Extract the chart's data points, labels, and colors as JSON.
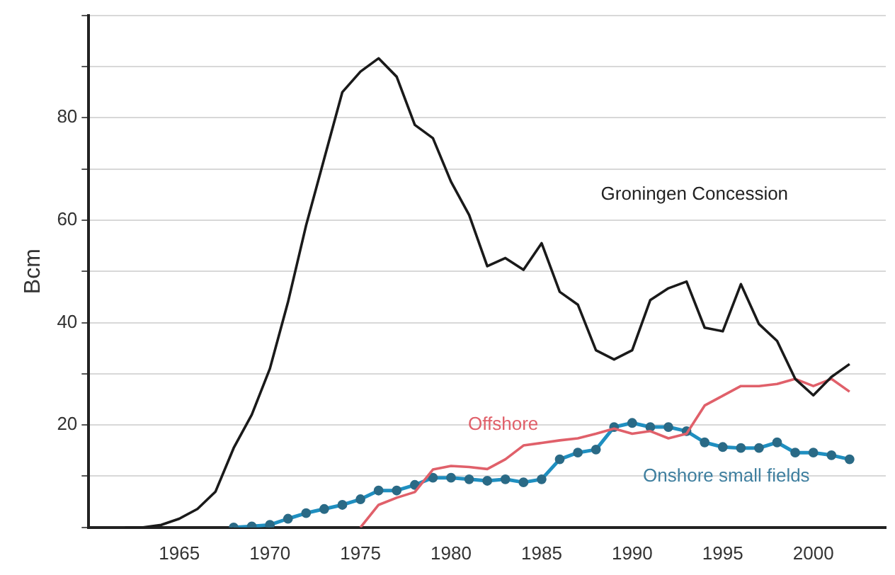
{
  "chart_data": {
    "type": "line",
    "ylabel": "Bcm",
    "xlim": [
      1960,
      2004
    ],
    "ylim": [
      0,
      100
    ],
    "xticks": [
      1965,
      1970,
      1975,
      1980,
      1985,
      1990,
      1995,
      2000
    ],
    "yticks": [
      {
        "value": 0,
        "label": null
      },
      {
        "value": 10,
        "label": null
      },
      20,
      {
        "value": 30,
        "label": null
      },
      40,
      {
        "value": 50,
        "label": null
      },
      60,
      {
        "value": 70,
        "label": null
      },
      80,
      {
        "value": 90,
        "label": null
      },
      {
        "value": 100,
        "label": null
      }
    ],
    "grid": "y",
    "legend": false,
    "line_style": "solid",
    "series": [
      {
        "name": "Groningen Concession",
        "color": "#1a1a1a",
        "marker": "none",
        "x": [
          1962,
          1963,
          1964,
          1965,
          1966,
          1967,
          1968,
          1969,
          1970,
          1971,
          1972,
          1973,
          1974,
          1975,
          1976,
          1977,
          1978,
          1979,
          1980,
          1981,
          1982,
          1983,
          1984,
          1985,
          1986,
          1987,
          1988,
          1989,
          1990,
          1991,
          1992,
          1993,
          1994,
          1995,
          1996,
          1997,
          1998,
          1999,
          2000,
          2001,
          2002
        ],
        "values": [
          0,
          0,
          0.5,
          1.7,
          3.6,
          7,
          15.5,
          22,
          31,
          44,
          59,
          72,
          85,
          89,
          91.6,
          88,
          78.6,
          76,
          67.5,
          61,
          51,
          52.6,
          50.3,
          55.5,
          46,
          43.5,
          34.6,
          32.8,
          34.6,
          44.4,
          46.7,
          48,
          39,
          38.3,
          47.5,
          39.7,
          36.4,
          29,
          25.8,
          29.4,
          31.9
        ]
      },
      {
        "name": "Offshore",
        "color": "#e0606a",
        "marker": "none",
        "x": [
          1975,
          1976,
          1977,
          1978,
          1979,
          1980,
          1981,
          1982,
          1983,
          1984,
          1985,
          1986,
          1987,
          1988,
          1989,
          1990,
          1991,
          1992,
          1993,
          1994,
          1995,
          1996,
          1997,
          1998,
          1999,
          2000,
          2001,
          2002
        ],
        "values": [
          0,
          4.4,
          5.8,
          6.9,
          11.3,
          12,
          11.8,
          11.4,
          13.3,
          16,
          16.5,
          17,
          17.4,
          18.3,
          19.3,
          18.3,
          18.8,
          17.4,
          18.3,
          23.8,
          25.7,
          27.6,
          27.6,
          28,
          29,
          27.6,
          29,
          26.5
        ]
      },
      {
        "name": "Onshore small fields",
        "color": "#1f8fc0",
        "marker": "circle",
        "x": [
          1968,
          1969,
          1970,
          1971,
          1972,
          1973,
          1974,
          1975,
          1976,
          1977,
          1978,
          1979,
          1980,
          1981,
          1982,
          1983,
          1984,
          1985,
          1986,
          1987,
          1988,
          1989,
          1990,
          1991,
          1992,
          1993,
          1994,
          1995,
          1996,
          1997,
          1998,
          1999,
          2000,
          2001,
          2002
        ],
        "values": [
          0,
          0.2,
          0.5,
          1.7,
          2.8,
          3.6,
          4.4,
          5.5,
          7.2,
          7.2,
          8.3,
          9.7,
          9.7,
          9.4,
          9.1,
          9.4,
          8.8,
          9.4,
          13.3,
          14.6,
          15.2,
          19.6,
          20.4,
          19.6,
          19.6,
          18.8,
          16.6,
          15.7,
          15.5,
          15.5,
          16.6,
          14.6,
          14.6,
          14.1,
          13.3
        ]
      }
    ]
  }
}
